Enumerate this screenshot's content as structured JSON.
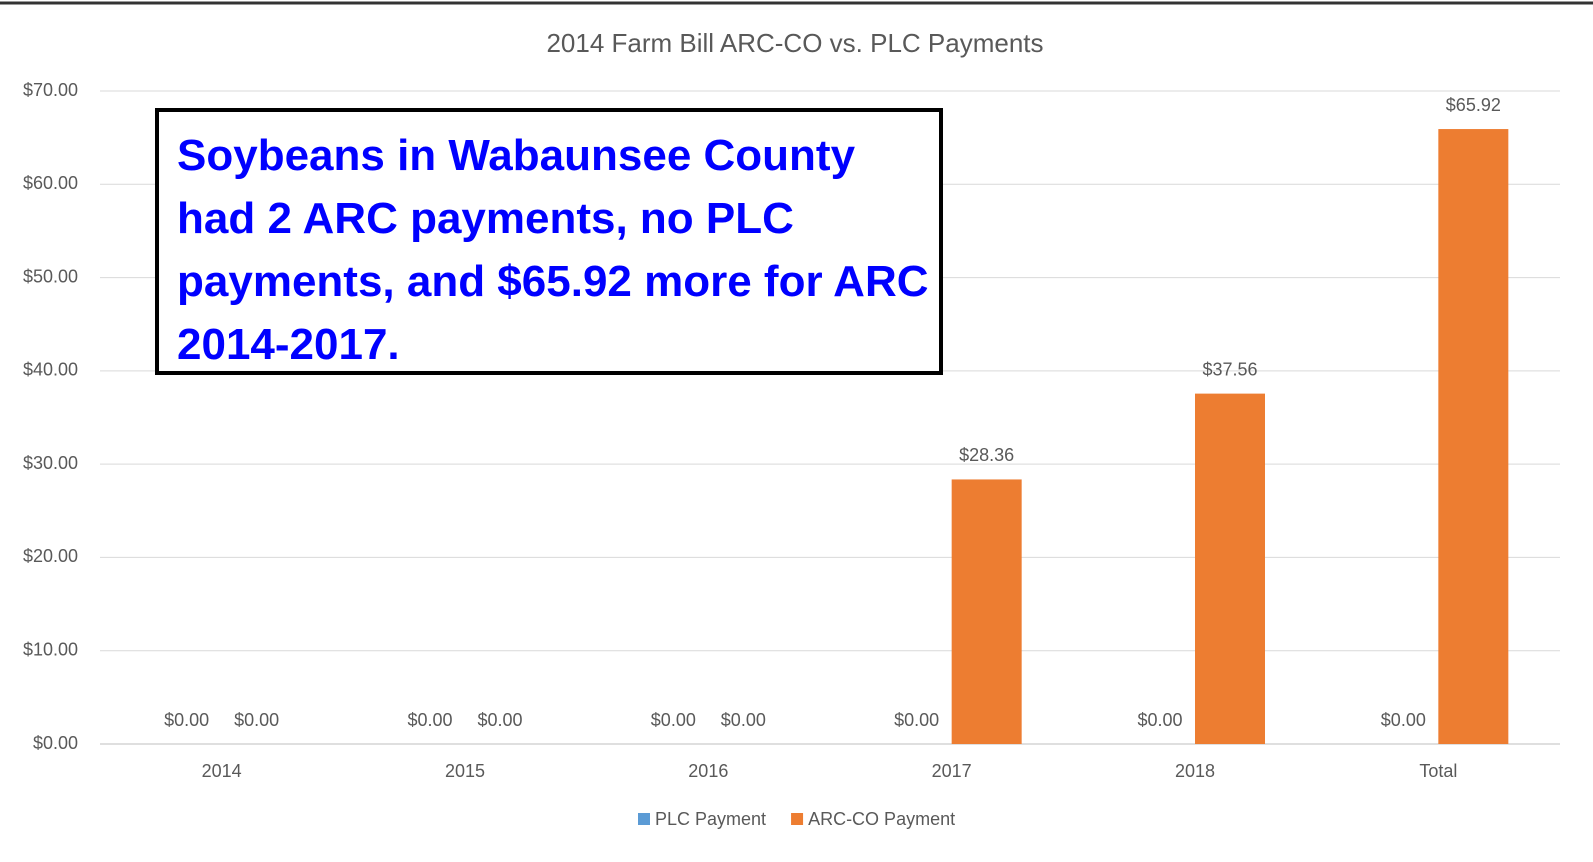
{
  "chart_data": {
    "type": "bar",
    "title": "2014 Farm Bill ARC-CO vs. PLC Payments",
    "annotation": "Soybeans in Wabaunsee County had 2 ARC payments, no PLC payments, and $65.92 more for ARC 2014-2017.",
    "categories": [
      "2014",
      "2015",
      "2016",
      "2017",
      "2018",
      "Total"
    ],
    "series": [
      {
        "name": "PLC Payment",
        "color": "#5b9bd5",
        "values": [
          0,
          0,
          0,
          0,
          0,
          0
        ],
        "value_labels": [
          "$0.00",
          "$0.00",
          "$0.00",
          "$0.00",
          "$0.00",
          "$0.00"
        ]
      },
      {
        "name": "ARC-CO Payment",
        "color": "#ed7d31",
        "values": [
          0,
          0,
          0,
          28.36,
          37.56,
          65.92
        ],
        "value_labels": [
          "$0.00",
          "$0.00",
          "$0.00",
          "$28.36",
          "$37.56",
          "$65.92"
        ]
      }
    ],
    "ylim": [
      0,
      70
    ],
    "yticks": [
      {
        "value": 0,
        "label": "$0.00"
      },
      {
        "value": 10,
        "label": "$10.00"
      },
      {
        "value": 20,
        "label": "$20.00"
      },
      {
        "value": 30,
        "label": "$30.00"
      },
      {
        "value": 40,
        "label": "$40.00"
      },
      {
        "value": 50,
        "label": "$50.00"
      },
      {
        "value": 60,
        "label": "$60.00"
      },
      {
        "value": 70,
        "label": "$70.00"
      }
    ],
    "grid": true,
    "legend": "bottom"
  }
}
